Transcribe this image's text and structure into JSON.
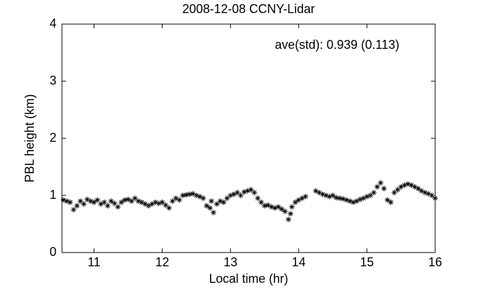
{
  "chart_data": {
    "type": "scatter",
    "title": "2008-12-08 CCNY-Lidar",
    "xlabel": "Local time (hr)",
    "ylabel": "PBL height (km)",
    "annotation": "ave(std): 0.939 (0.113)",
    "marker": "*",
    "color": "#000000",
    "grid": false,
    "xlim": [
      10.53,
      16
    ],
    "ylim": [
      0,
      4
    ],
    "xticks": [
      11,
      12,
      13,
      14,
      15,
      16
    ],
    "yticks": [
      0,
      1,
      2,
      3,
      4
    ],
    "x": [
      10.55,
      10.6,
      10.65,
      10.7,
      10.75,
      10.8,
      10.85,
      10.9,
      10.95,
      11.0,
      11.05,
      11.1,
      11.15,
      11.2,
      11.25,
      11.3,
      11.35,
      11.4,
      11.45,
      11.5,
      11.55,
      11.6,
      11.65,
      11.7,
      11.75,
      11.8,
      11.85,
      11.9,
      11.95,
      12.0,
      12.05,
      12.1,
      12.15,
      12.2,
      12.25,
      12.3,
      12.35,
      12.4,
      12.45,
      12.5,
      12.55,
      12.6,
      12.65,
      12.7,
      12.72,
      12.75,
      12.8,
      12.85,
      12.9,
      12.95,
      13.0,
      13.05,
      13.1,
      13.15,
      13.2,
      13.25,
      13.3,
      13.35,
      13.4,
      13.45,
      13.5,
      13.55,
      13.6,
      13.65,
      13.7,
      13.75,
      13.8,
      13.85,
      13.88,
      13.9,
      13.95,
      14.0,
      14.05,
      14.1,
      14.25,
      14.3,
      14.35,
      14.4,
      14.45,
      14.5,
      14.55,
      14.6,
      14.65,
      14.7,
      14.75,
      14.8,
      14.85,
      14.9,
      14.95,
      15.0,
      15.05,
      15.1,
      15.15,
      15.2,
      15.25,
      15.3,
      15.35,
      15.4,
      15.45,
      15.5,
      15.55,
      15.6,
      15.65,
      15.7,
      15.75,
      15.8,
      15.85,
      15.9,
      15.95,
      16.0
    ],
    "y": [
      0.92,
      0.9,
      0.88,
      0.75,
      0.82,
      0.9,
      0.85,
      0.93,
      0.9,
      0.88,
      0.92,
      0.85,
      0.88,
      0.82,
      0.9,
      0.86,
      0.8,
      0.88,
      0.92,
      0.93,
      0.9,
      0.95,
      0.9,
      0.88,
      0.85,
      0.82,
      0.85,
      0.88,
      0.86,
      0.88,
      0.83,
      0.78,
      0.9,
      0.95,
      0.92,
      1.0,
      1.01,
      1.02,
      1.03,
      1.0,
      0.98,
      0.95,
      0.82,
      0.78,
      0.9,
      0.7,
      0.85,
      0.9,
      0.88,
      0.95,
      1.0,
      1.02,
      1.05,
      1.0,
      1.06,
      1.08,
      1.1,
      1.05,
      0.95,
      0.88,
      0.82,
      0.83,
      0.8,
      0.78,
      0.8,
      0.76,
      0.72,
      0.58,
      0.68,
      0.8,
      0.88,
      0.92,
      0.95,
      0.98,
      1.08,
      1.05,
      1.02,
      1.0,
      0.98,
      1.0,
      0.96,
      0.95,
      0.94,
      0.92,
      0.9,
      0.88,
      0.9,
      0.93,
      0.95,
      0.98,
      1.0,
      1.05,
      1.15,
      1.22,
      1.12,
      0.92,
      0.88,
      1.05,
      1.1,
      1.15,
      1.18,
      1.2,
      1.18,
      1.15,
      1.12,
      1.08,
      1.05,
      1.03,
      1.0,
      0.95
    ]
  }
}
